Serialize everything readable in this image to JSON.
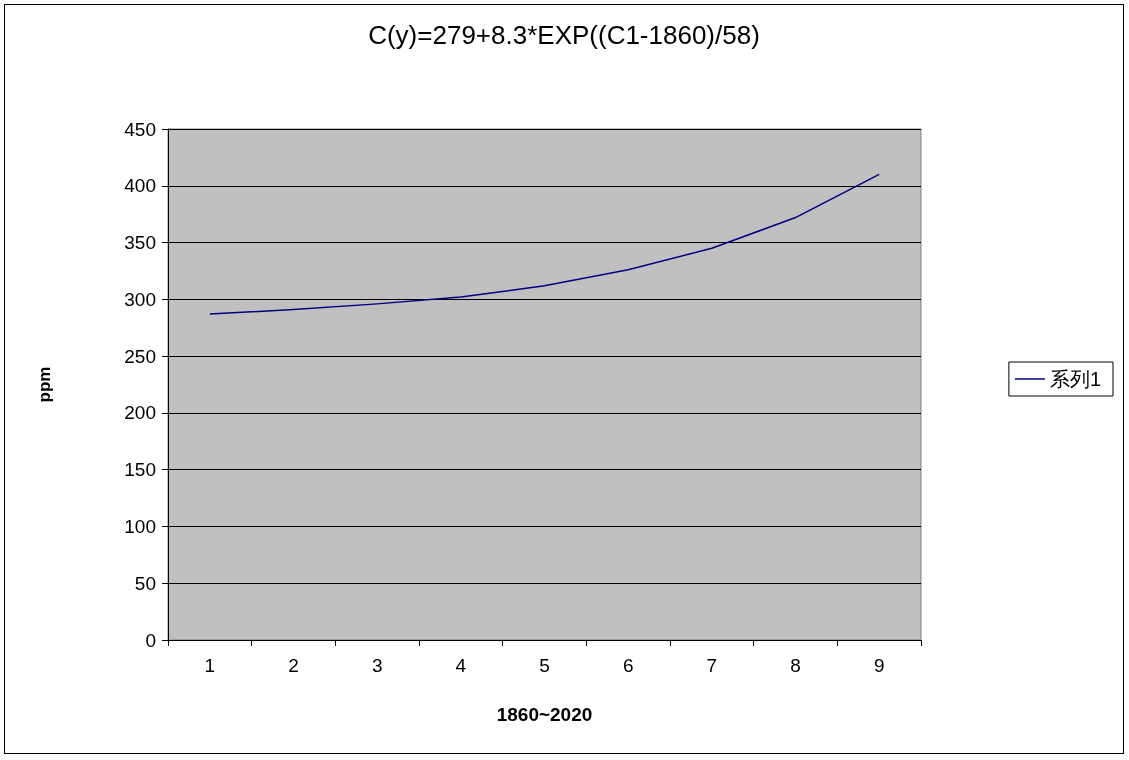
{
  "chart_data": {
    "type": "line",
    "title": "C(y)=279+8.3*EXP((C1-1860)/58)",
    "xlabel": "1860~2020",
    "ylabel": "ppm",
    "categories": [
      "1",
      "2",
      "3",
      "4",
      "5",
      "6",
      "7",
      "8",
      "9"
    ],
    "series": [
      {
        "name": "系列1",
        "color": "#000080",
        "values": [
          287,
          291,
          296,
          302,
          312,
          326,
          345,
          372,
          410
        ]
      }
    ],
    "ylim": [
      0,
      450
    ],
    "yticks": [
      0,
      50,
      100,
      150,
      200,
      250,
      300,
      350,
      400,
      450
    ],
    "grid": "y",
    "legend": "right",
    "marker": "none",
    "line_style": "solid"
  }
}
